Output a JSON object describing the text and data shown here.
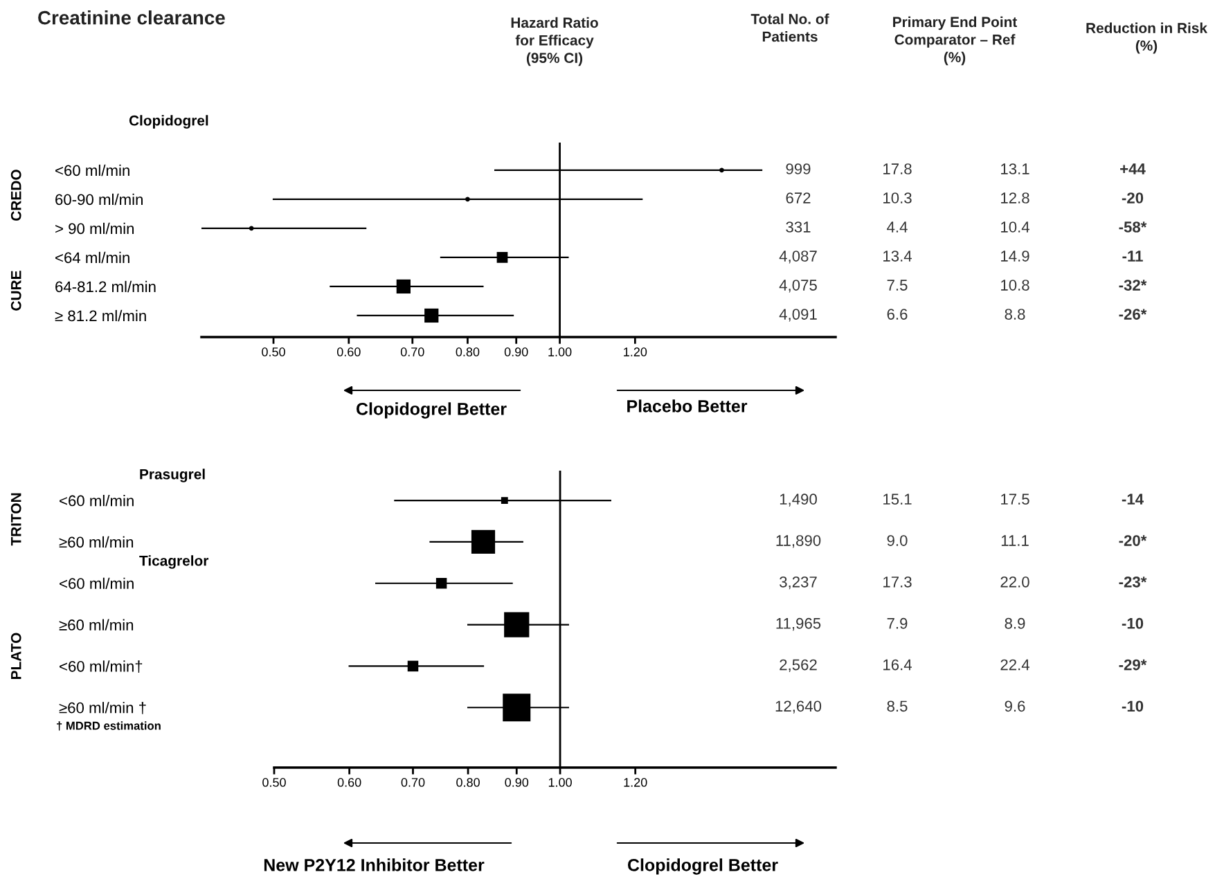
{
  "chart_data": [
    {
      "type": "bubble",
      "orientation": "horizontal",
      "title": "Creatinine clearance",
      "subtitle": "Hazard Ratio\nfor Efficacy\n(95% CI)",
      "categories": [
        "<60 ml/min",
        "60-90 ml/min",
        "> 90 ml/min",
        "<64 ml/min",
        "64-81.2 ml/min",
        "≥ 81.2 ml/min"
      ],
      "series": [
        {
          "color": "#000000",
          "marker": "circle",
          "values": [
            1.48,
            0.8,
            0.474,
            null,
            null,
            null
          ],
          "sizes": [
            0.11,
            0.11,
            0.11,
            null,
            null,
            null
          ],
          "errors": [
            [
              0.855,
              1.63
            ],
            [
              0.5,
              1.22
            ],
            [
              0.42,
              0.625
            ],
            null,
            null,
            null
          ]
        },
        {
          "color": "#000000",
          "marker": "square",
          "values": [
            null,
            null,
            null,
            0.87,
            0.685,
            0.733
          ],
          "sizes": [
            null,
            null,
            null,
            0.6,
            1.0,
            1.0
          ],
          "errors": [
            null,
            null,
            null,
            [
              0.75,
              1.02
            ],
            [
              0.574,
              0.83
            ],
            [
              0.613,
              0.893
            ]
          ]
        }
      ],
      "log": "x",
      "xlim": [
        0.42,
        1.95
      ],
      "xticks": [
        {
          "value": 0.5,
          "label": "0.50"
        },
        {
          "value": 0.6,
          "label": "0.60"
        },
        {
          "value": 0.7,
          "label": "0.70"
        },
        {
          "value": 0.8,
          "label": "0.80"
        },
        {
          "value": 0.9,
          "label": "0.90"
        },
        {
          "value": 1.0,
          "label": "1.00"
        },
        {
          "value": 1.2,
          "label": "1.20"
        }
      ],
      "ref_lines": [
        {
          "axis": "x",
          "value": 1.0,
          "label": null,
          "color": "#000000"
        }
      ],
      "annotations": [
        "Clopidogrel",
        "CREDO",
        "CURE",
        "Clopidogrel Better",
        "Placebo Better"
      ],
      "grid": false,
      "legend": false
    },
    {
      "type": "other",
      "categories": [
        "Total No. of\nPatients",
        "Primary End Point\nComparator – Ref\n(%)",
        null,
        "Reduction in Risk\n(%)"
      ],
      "cell_labels": [
        [
          "999",
          "17.8",
          "13.1",
          "+44"
        ],
        [
          "672",
          "10.3",
          "12.8",
          "-20"
        ],
        [
          "331",
          "4.4",
          "10.4",
          "-58*"
        ],
        [
          "4,087",
          "13.4",
          "14.9",
          "-11"
        ],
        [
          "4,075",
          "7.5",
          "10.8",
          "-32*"
        ],
        [
          "4,091",
          "6.6",
          "8.8",
          "-26*"
        ]
      ]
    },
    {
      "type": "bubble",
      "orientation": "horizontal",
      "categories": [
        "<60 ml/min",
        "≥60 ml/min",
        "<60 ml/min",
        "≥60 ml/min",
        "<60 ml/min†",
        "≥60 ml/min †"
      ],
      "series": [
        {
          "color": "#000000",
          "marker": "square",
          "values": [
            0.874,
            0.83,
            0.75,
            0.9,
            0.7,
            0.9
          ],
          "sizes": [
            0.06,
            0.73,
            0.15,
            0.82,
            0.15,
            1.0
          ],
          "errors": [
            [
              0.67,
              1.13
            ],
            [
              0.73,
              0.913
            ],
            [
              0.64,
              0.89
            ],
            [
              0.8,
              1.02
            ],
            [
              0.6,
              0.83
            ],
            [
              0.8,
              1.02
            ]
          ]
        }
      ],
      "log": "x",
      "xlim": [
        0.5,
        1.95
      ],
      "xticks": [
        {
          "value": 0.5,
          "label": "0.50"
        },
        {
          "value": 0.6,
          "label": "0.60"
        },
        {
          "value": 0.7,
          "label": "0.70"
        },
        {
          "value": 0.8,
          "label": "0.80"
        },
        {
          "value": 0.9,
          "label": "0.90"
        },
        {
          "value": 1.0,
          "label": "1.00"
        },
        {
          "value": 1.2,
          "label": "1.20"
        }
      ],
      "ref_lines": [
        {
          "axis": "x",
          "value": 1.0,
          "label": null,
          "color": "#000000"
        }
      ],
      "annotations": [
        "Prasugrel",
        "Ticagrelor",
        "TRITON",
        "PLATO",
        "† MDRD estimation",
        "New P2Y12 Inhibitor Better",
        "Clopidogrel Better"
      ],
      "grid": false,
      "legend": false
    },
    {
      "type": "other",
      "categories": [
        null,
        null,
        null,
        null
      ],
      "cell_labels": [
        [
          "1,490",
          "15.1",
          "17.5",
          "-14"
        ],
        [
          "11,890",
          "9.0",
          "11.1",
          "-20*"
        ],
        [
          "3,237",
          "17.3",
          "22.0",
          "-23*"
        ],
        [
          "11,965",
          "7.9",
          "8.9",
          "-10"
        ],
        [
          "2,562",
          "16.4",
          "22.4",
          "-29*"
        ],
        [
          "12,640",
          "8.5",
          "9.6",
          "-10"
        ]
      ]
    }
  ]
}
